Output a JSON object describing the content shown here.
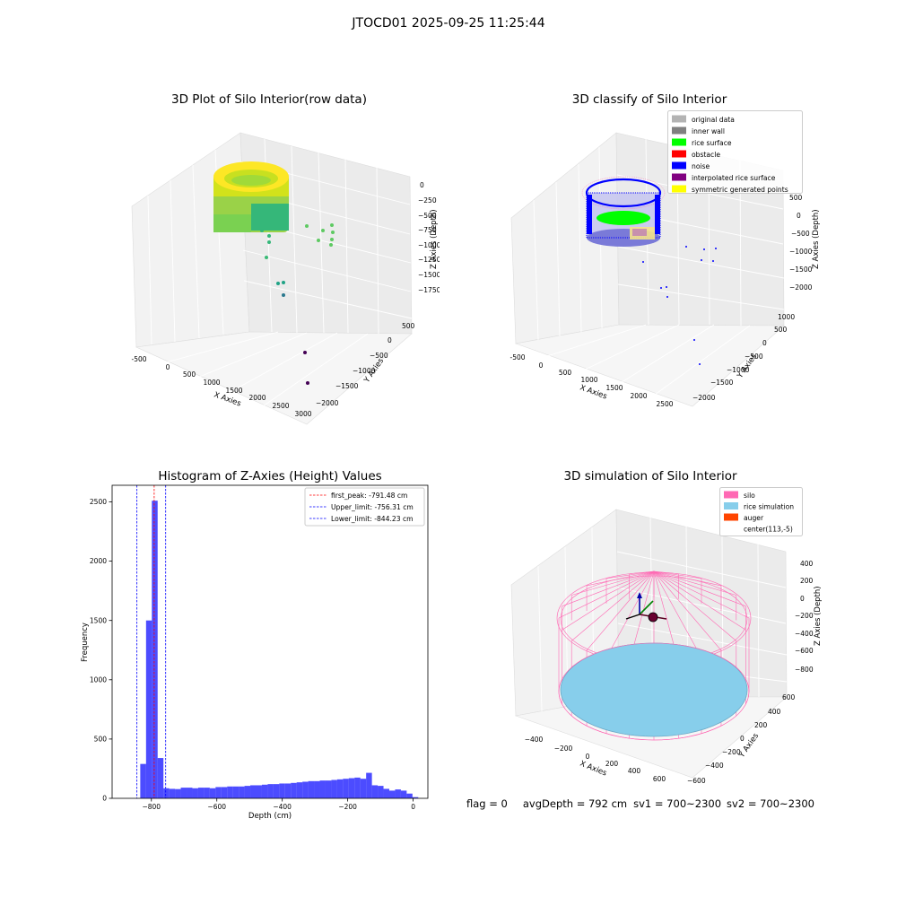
{
  "figure": {
    "suptitle": "JTOCD01 2025-09-25 11:25:44"
  },
  "panels": {
    "raw": {
      "title": "3D Plot of Silo Interior(row data)",
      "xlabel": "X Axies",
      "ylabel": "Y Axies",
      "zlabel": "Z Axies (Depth)",
      "xticks": [
        "-500",
        "0",
        "500",
        "1000",
        "1500",
        "2000",
        "2500",
        "3000"
      ],
      "yticks": [
        "500",
        "0",
        "−500",
        "−1000",
        "−1500",
        "−2000"
      ],
      "zticks": [
        "0",
        "−250",
        "−500",
        "−750",
        "−1000",
        "−1250",
        "−1500",
        "−1750"
      ]
    },
    "classify": {
      "title": "3D classify of Silo Interior",
      "xlabel": "X Axies",
      "ylabel": "Y Axies",
      "zlabel": "Z Axies (Depth)",
      "xticks": [
        "-500",
        "0",
        "500",
        "1000",
        "1500",
        "2000",
        "2500"
      ],
      "yticks": [
        "1000",
        "500",
        "0",
        "−500",
        "−1000",
        "−1500",
        "−2000"
      ],
      "zticks": [
        "500",
        "0",
        "−500",
        "−1000",
        "−1500",
        "−2000"
      ],
      "legend": [
        {
          "label": "original data",
          "color": "#b3b3b3"
        },
        {
          "label": "inner wall",
          "color": "#808080"
        },
        {
          "label": "rice surface",
          "color": "#00ff00"
        },
        {
          "label": "obstacle",
          "color": "#ff0000"
        },
        {
          "label": "noise",
          "color": "#0000ff"
        },
        {
          "label": "interpolated rice surface",
          "color": "#800080"
        },
        {
          "label": "symmetric generated points",
          "color": "#ffff00"
        }
      ]
    },
    "simulation": {
      "title": "3D simulation of Silo Interior",
      "xlabel": "X Axies",
      "ylabel": "Y Axies",
      "zlabel": "Z Axies (Depth)",
      "xticks": [
        "−400",
        "−200",
        "0",
        "200",
        "400",
        "600"
      ],
      "yticks": [
        "600",
        "400",
        "200",
        "0",
        "−200",
        "−400",
        "−600"
      ],
      "zticks": [
        "400",
        "200",
        "0",
        "−200",
        "−400",
        "−600",
        "−800"
      ],
      "legend": [
        {
          "label": "silo",
          "color": "#ff69b4"
        },
        {
          "label": "rice simulation",
          "color": "#87ceeb"
        },
        {
          "label": "auger",
          "color": "#ff4500"
        },
        {
          "label": "center(113,-5)",
          "color": "#ffffff"
        }
      ]
    }
  },
  "chart_data": {
    "type": "bar",
    "title": "Histogram of Z-Axies (Height) Values",
    "xlabel": "Depth (cm)",
    "ylabel": "Frequency",
    "xlim": [
      -920,
      45
    ],
    "ylim": [
      0,
      2640
    ],
    "xticks": [
      -800,
      -600,
      -400,
      -200,
      0
    ],
    "xtick_labels": [
      "−800",
      "−600",
      "−400",
      "−200",
      "0"
    ],
    "yticks": [
      0,
      500,
      1000,
      1500,
      2000,
      2500
    ],
    "bar_color": "#0000ff",
    "bin_width": 17.7,
    "bin_starts": [
      -834,
      -816.3,
      -798.6,
      -780.9,
      -763.2,
      -745.5,
      -727.8,
      -710.1,
      -692.4,
      -674.7,
      -657,
      -639.3,
      -621.6,
      -603.9,
      -586.2,
      -568.5,
      -550.8,
      -533.1,
      -515.4,
      -497.7,
      -480,
      -462.3,
      -444.6,
      -426.9,
      -409.2,
      -391.5,
      -373.8,
      -356.1,
      -338.4,
      -320.7,
      -303,
      -285.3,
      -267.6,
      -249.9,
      -232.2,
      -214.5,
      -196.8,
      -179.1,
      -161.4,
      -143.7,
      -126,
      -108.3,
      -90.6,
      -72.9,
      -55.2,
      -37.5,
      -19.8,
      -2.1
    ],
    "counts": [
      290,
      1500,
      2510,
      340,
      85,
      80,
      78,
      90,
      90,
      85,
      90,
      90,
      85,
      95,
      95,
      100,
      100,
      100,
      105,
      110,
      110,
      115,
      120,
      120,
      125,
      125,
      130,
      135,
      140,
      145,
      145,
      150,
      150,
      155,
      160,
      165,
      170,
      175,
      165,
      215,
      110,
      105,
      80,
      65,
      75,
      65,
      40,
      10
    ],
    "vlines": [
      {
        "label": "first_peak: -791.48 cm",
        "x": -791.48,
        "color": "#ff0000"
      },
      {
        "label": "Upper_limit: -756.31 cm",
        "x": -756.31,
        "color": "#0000ff"
      },
      {
        "label": "Lower_limit: -844.23 cm",
        "x": -844.23,
        "color": "#0000ff"
      }
    ],
    "legend_position": "upper right"
  },
  "status": {
    "flag": "flag = 0",
    "avg_depth": "avgDepth = 792 cm",
    "sv1": "sv1 = 700~2300",
    "sv2": "sv2 = 700~2300"
  }
}
